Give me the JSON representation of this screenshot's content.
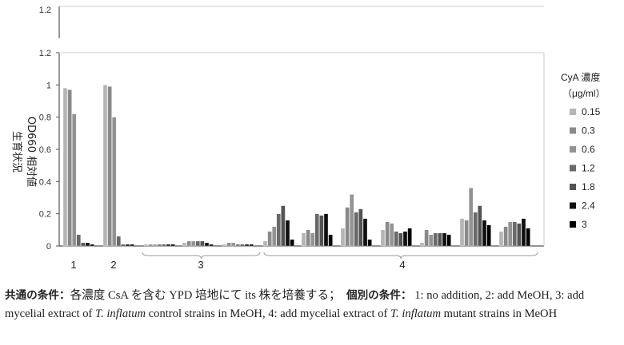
{
  "chart_data": {
    "type": "bar",
    "ylabel_lines": [
      "生育状況",
      "OD660 相対値"
    ],
    "ylim": [
      0,
      1.2
    ],
    "yticks": [
      "0",
      "0.2",
      "0.4",
      "0.6",
      "0.8",
      "1",
      "1.2"
    ],
    "top_panel_tick": "1.2",
    "legend_title": [
      "CyA 濃度",
      "（μg/ml）"
    ],
    "legend_position": "right",
    "grid": false,
    "series": [
      {
        "name": "0.15",
        "color": "#b5b5b5"
      },
      {
        "name": "0.3",
        "color": "#8a8a8a"
      },
      {
        "name": "0.6",
        "color": "#939393"
      },
      {
        "name": "1.2",
        "color": "#696969"
      },
      {
        "name": "1.8",
        "color": "#535353"
      },
      {
        "name": "2.4",
        "color": "#101010"
      },
      {
        "name": "3",
        "color": "#000000"
      }
    ],
    "group_labels": [
      "1",
      "2",
      "3",
      "4"
    ],
    "groups": [
      {
        "label": "1",
        "clusters": [
          [
            0.98,
            0.97,
            0.82,
            0.07,
            0.02,
            0.02,
            0.01
          ]
        ]
      },
      {
        "label": "2",
        "clusters": [
          [
            1.0,
            0.99,
            0.8,
            0.06,
            0.01,
            0.01,
            0.01
          ]
        ]
      },
      {
        "label": "3",
        "clusters": [
          [
            0.01,
            0.01,
            0.01,
            0.01,
            0.01,
            0.01,
            0.01
          ],
          [
            0.02,
            0.03,
            0.03,
            0.03,
            0.03,
            0.02,
            0.01
          ],
          [
            0.01,
            0.02,
            0.02,
            0.01,
            0.01,
            0.01,
            0.01
          ]
        ]
      },
      {
        "label": "4",
        "clusters": [
          [
            0.03,
            0.09,
            0.12,
            0.2,
            0.25,
            0.16,
            0.04
          ],
          [
            0.08,
            0.1,
            0.08,
            0.2,
            0.19,
            0.2,
            0.07
          ],
          [
            0.11,
            0.24,
            0.32,
            0.21,
            0.23,
            0.17,
            0.04
          ],
          [
            0.1,
            0.15,
            0.14,
            0.09,
            0.08,
            0.09,
            0.11
          ],
          [
            0.02,
            0.1,
            0.07,
            0.08,
            0.08,
            0.08,
            0.07
          ],
          [
            0.17,
            0.16,
            0.36,
            0.21,
            0.25,
            0.16,
            0.13
          ],
          [
            0.09,
            0.12,
            0.15,
            0.15,
            0.14,
            0.17,
            0.11
          ]
        ]
      }
    ]
  },
  "caption": {
    "common_label": "共通の条件：",
    "common_text": "各濃度 CsA を含む YPD 培地にて its 株を培養する；",
    "individual_label": "個別の条件：",
    "part1": "1: no addition, 2: add MeOH, 3: add mycelial extract of ",
    "species1": "T. inflatum",
    "part2": " control strains in MeOH, 4: add mycelial extract of ",
    "species2": "T. inflatum",
    "part3": " mutant strains in MeOH"
  }
}
